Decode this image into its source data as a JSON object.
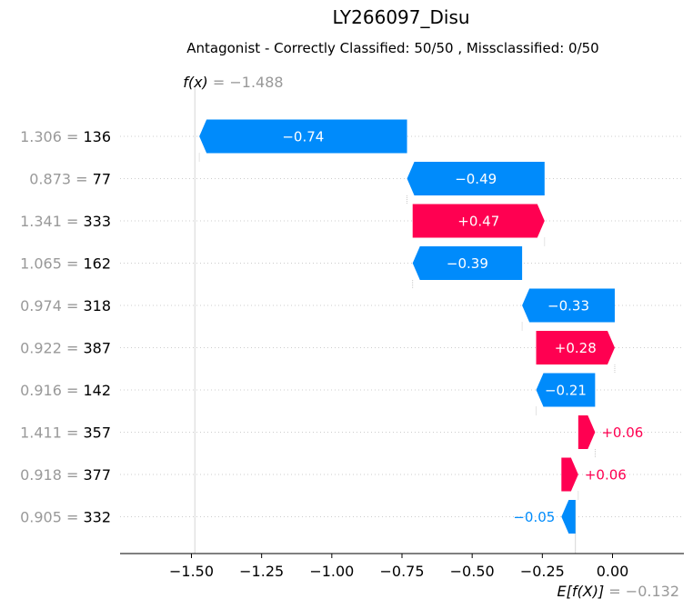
{
  "chart_data": {
    "type": "waterfall",
    "title": "LY266097_Disu",
    "subtitle": "Antagonist - Correctly Classified: 50/50 , Missclassified: 0/50",
    "fx_label": "f(x)",
    "fx_value": -1.488,
    "fx_value_text": "−1.488",
    "ex_label": "E[f(X)]",
    "ex_value": -0.132,
    "ex_value_text": "−0.132",
    "xlim": [
      -1.75,
      0.25
    ],
    "x_ticks": [
      -1.5,
      -1.25,
      -1.0,
      -0.75,
      -0.5,
      -0.25,
      0.0
    ],
    "x_tick_labels": [
      "−1.50",
      "−1.25",
      "−1.00",
      "−0.75",
      "−0.50",
      "−0.25",
      "0.00"
    ],
    "colors": {
      "positive": "#ff0051",
      "negative": "#008bfb",
      "value_text": "#999999",
      "grid": "#cccccc"
    },
    "features": [
      {
        "value": "1.306",
        "feature": "136",
        "shap": -0.74,
        "label": "−0.74"
      },
      {
        "value": "0.873",
        "feature": "77",
        "shap": -0.49,
        "label": "−0.49"
      },
      {
        "value": "1.341",
        "feature": "333",
        "shap": 0.47,
        "label": "+0.47"
      },
      {
        "value": "1.065",
        "feature": "162",
        "shap": -0.39,
        "label": "−0.39"
      },
      {
        "value": "0.974",
        "feature": "318",
        "shap": -0.33,
        "label": "−0.33"
      },
      {
        "value": "0.922",
        "feature": "387",
        "shap": 0.28,
        "label": "+0.28"
      },
      {
        "value": "0.916",
        "feature": "142",
        "shap": -0.21,
        "label": "−0.21"
      },
      {
        "value": "1.411",
        "feature": "357",
        "shap": 0.06,
        "label": "+0.06"
      },
      {
        "value": "0.918",
        "feature": "377",
        "shap": 0.06,
        "label": "+0.06"
      },
      {
        "value": "0.905",
        "feature": "332",
        "shap": -0.05,
        "label": "−0.05"
      }
    ]
  }
}
